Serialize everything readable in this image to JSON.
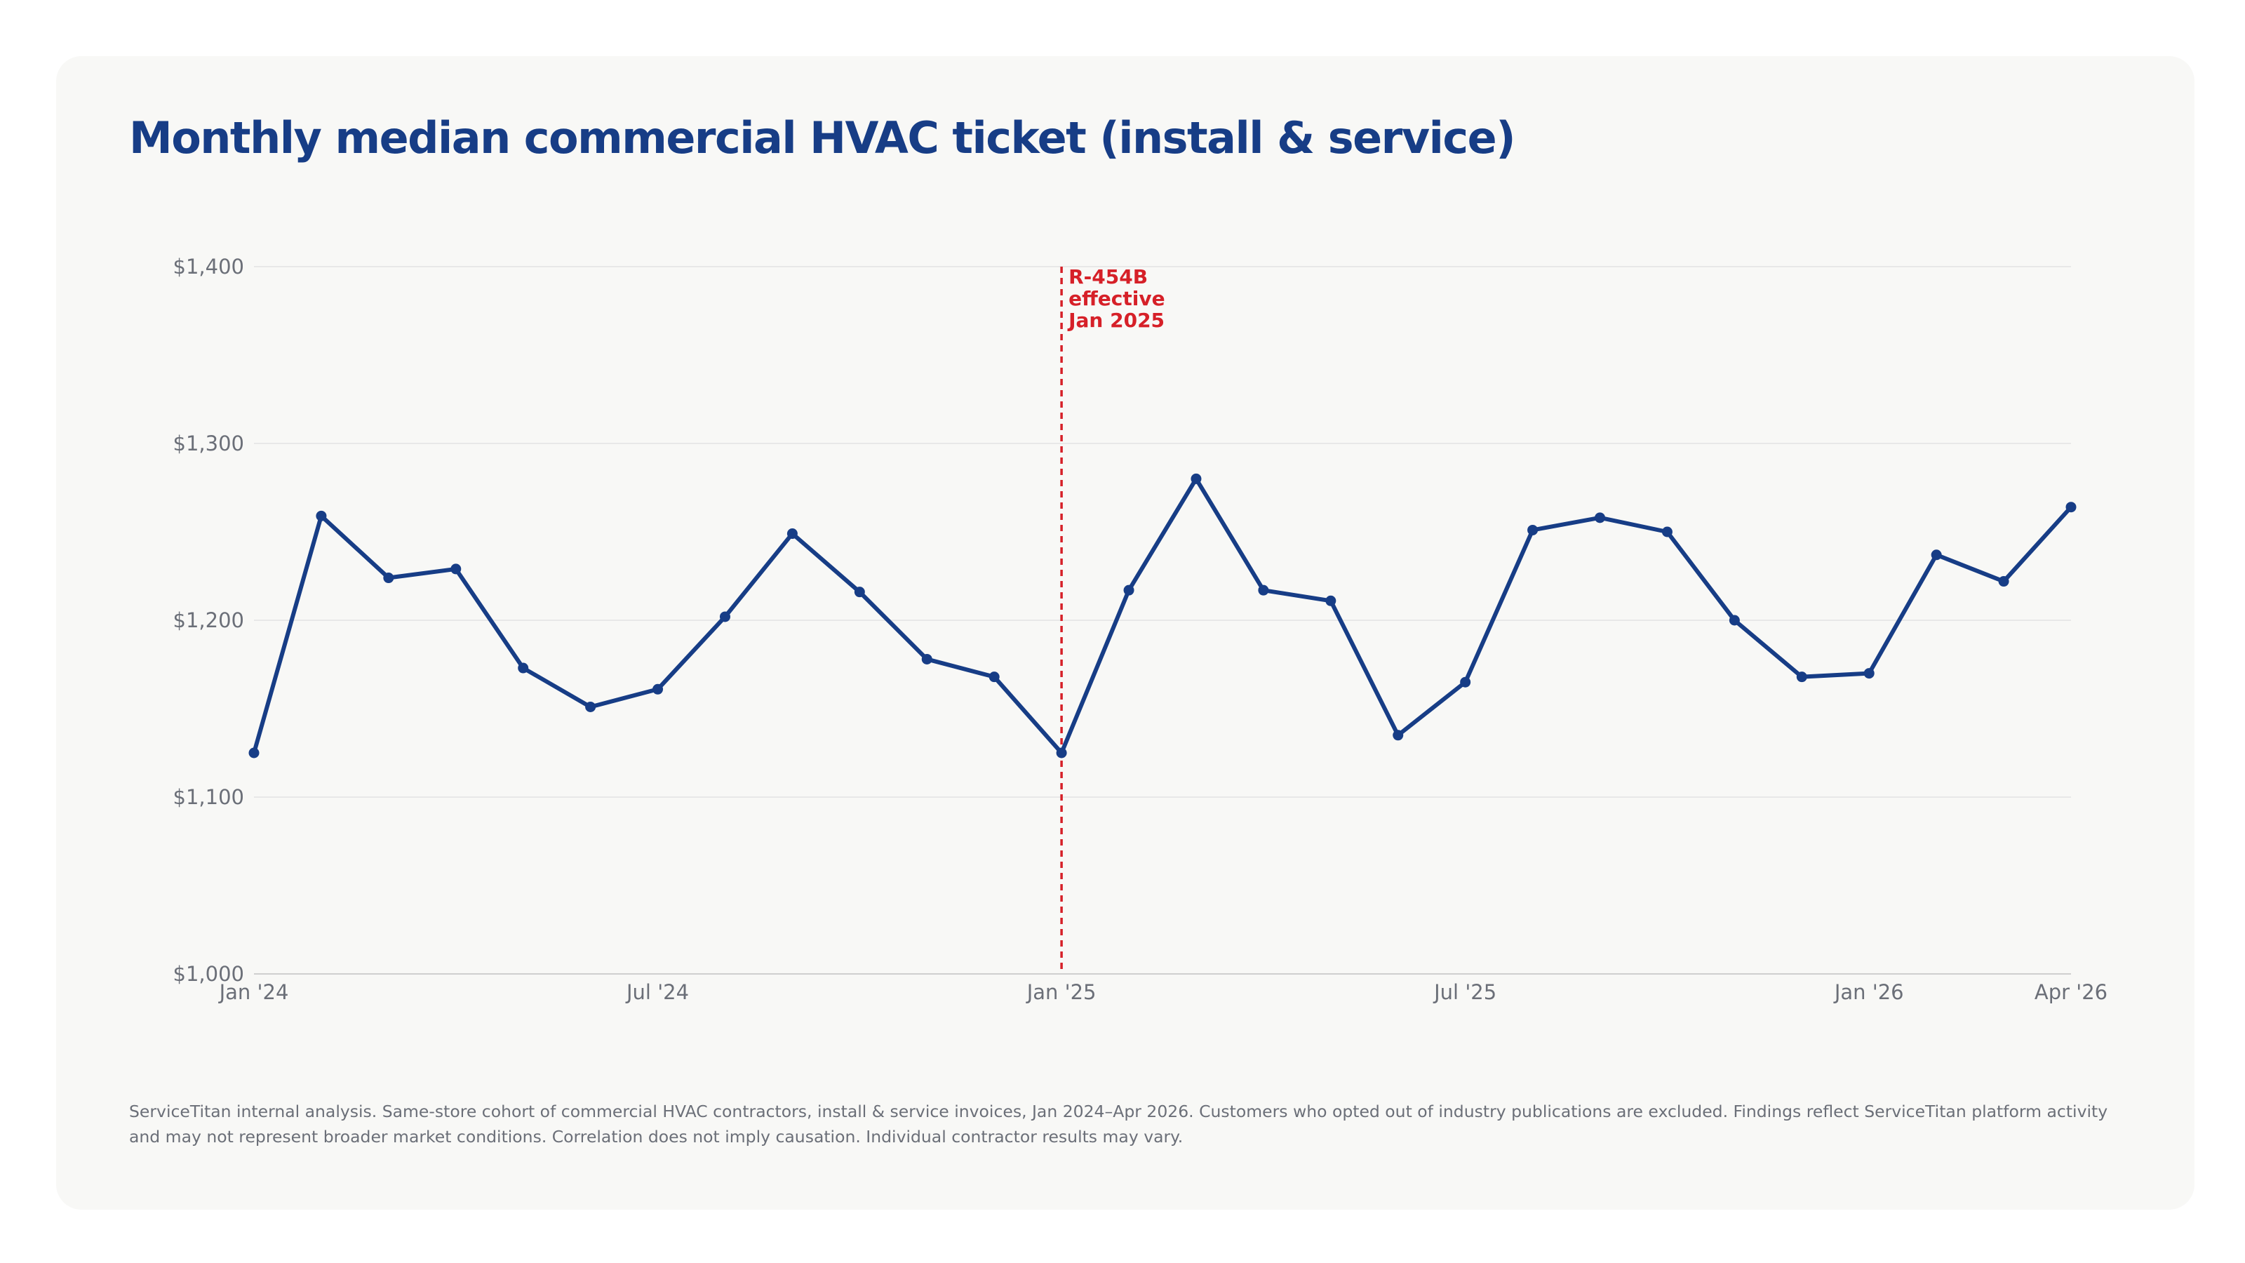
{
  "title": "Monthly median commercial HVAC ticket (install & service)",
  "footnote": "ServiceTitan internal analysis. Same-store cohort of commercial HVAC contractors, install & service invoices, Jan 2024–Apr 2026. Customers who opted out of industry publications are excluded. Findings reflect ServiceTitan platform activity and may not represent broader market conditions. Correlation does not imply causation. Individual contractor results may vary.",
  "colors": {
    "line": "#173d86",
    "annotation": "#d62028",
    "grid": "#e3e3e3",
    "axis_text": "#6b6f78"
  },
  "chart_data": {
    "type": "line",
    "title": "Monthly median commercial HVAC ticket (install & service)",
    "xlabel": "",
    "ylabel": "",
    "x": [
      "2024-01",
      "2024-02",
      "2024-03",
      "2024-04",
      "2024-05",
      "2024-06",
      "2024-07",
      "2024-08",
      "2024-09",
      "2024-10",
      "2024-11",
      "2024-12",
      "2025-01",
      "2025-02",
      "2025-03",
      "2025-04",
      "2025-05",
      "2025-06",
      "2025-07",
      "2025-08",
      "2025-09",
      "2025-10",
      "2025-11",
      "2025-12",
      "2026-01",
      "2026-02",
      "2026-03",
      "2026-04"
    ],
    "series": [
      {
        "values": [
          1125,
          1259,
          1224,
          1229,
          1173,
          1151,
          1161,
          1202,
          1249,
          1216,
          1178,
          1168,
          1125,
          1217,
          1280,
          1217,
          1211,
          1135,
          1165,
          1251,
          1258,
          1250,
          1200,
          1168,
          1170,
          1237,
          1222,
          1264
        ]
      }
    ],
    "ylim": [
      1000,
      1400
    ],
    "yticks": [
      1000,
      1100,
      1200,
      1300,
      1400
    ],
    "ytick_labels": [
      "$1,000",
      "$1,100",
      "$1,200",
      "$1,300",
      "$1,400"
    ],
    "xticks": [
      {
        "x": "2024-01",
        "label": "Jan '24"
      },
      {
        "x": "2024-07",
        "label": "Jul '24"
      },
      {
        "x": "2025-01",
        "label": "Jan '25"
      },
      {
        "x": "2025-07",
        "label": "Jul '25"
      },
      {
        "x": "2026-01",
        "label": "Jan '26"
      },
      {
        "x": "2026-04",
        "label": "Apr '26"
      }
    ],
    "grid": true,
    "annotations": [
      {
        "x": "2025-01",
        "type": "vline",
        "style": "dashed",
        "lines": [
          "R-454B",
          "effective",
          "Jan 2025"
        ]
      }
    ]
  }
}
